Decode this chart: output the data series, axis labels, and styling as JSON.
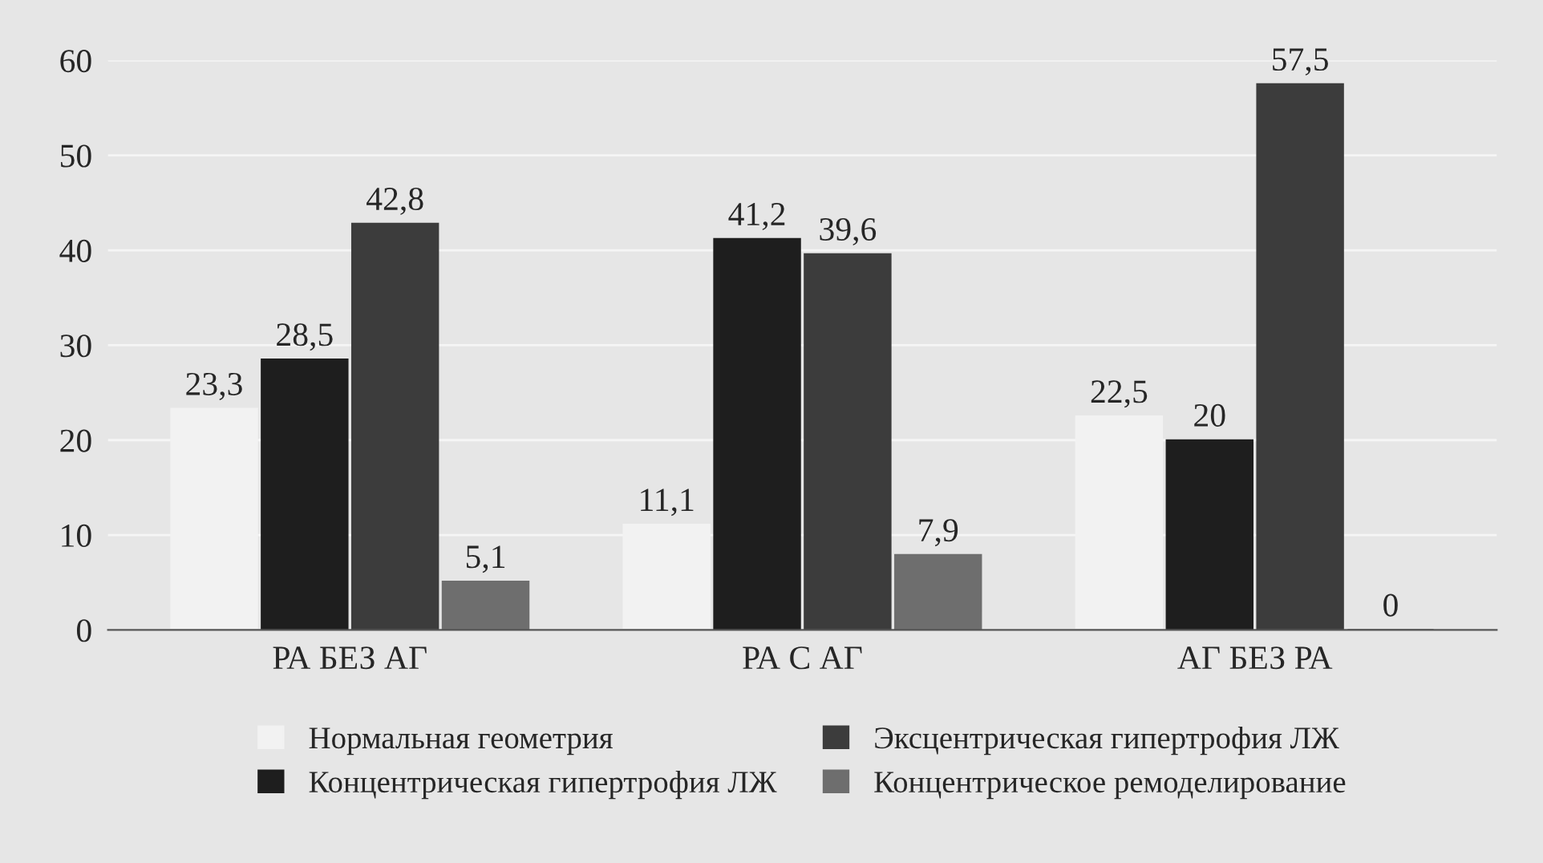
{
  "chart_data": {
    "type": "bar",
    "categories": [
      "РА БЕЗ АГ",
      "РА С АГ",
      "АГ БЕЗ РА"
    ],
    "series": [
      {
        "name": "Нормальная геометрия",
        "color": "#f2f2f2",
        "values": [
          23.3,
          11.1,
          22.5
        ],
        "value_labels": [
          "23,3",
          "11,1",
          "22,5"
        ]
      },
      {
        "name": "Концентрическая гипертрофия ЛЖ",
        "color": "#1e1e1e",
        "values": [
          28.5,
          41.2,
          20
        ],
        "value_labels": [
          "28,5",
          "41,2",
          "20"
        ]
      },
      {
        "name": "Эксцентрическая гипертрофия ЛЖ",
        "color": "#3c3c3c",
        "values": [
          42.8,
          39.6,
          57.5
        ],
        "value_labels": [
          "42,8",
          "39,6",
          "57,5"
        ]
      },
      {
        "name": "Концентрическое ремоделирование",
        "color": "#6e6e6e",
        "values": [
          5.1,
          7.9,
          0
        ],
        "value_labels": [
          "5,1",
          "7,9",
          "0"
        ]
      }
    ],
    "ylim": [
      0,
      60
    ],
    "yticks": [
      0,
      10,
      20,
      30,
      40,
      50,
      60
    ],
    "grid": "y",
    "legend": "bottom"
  }
}
